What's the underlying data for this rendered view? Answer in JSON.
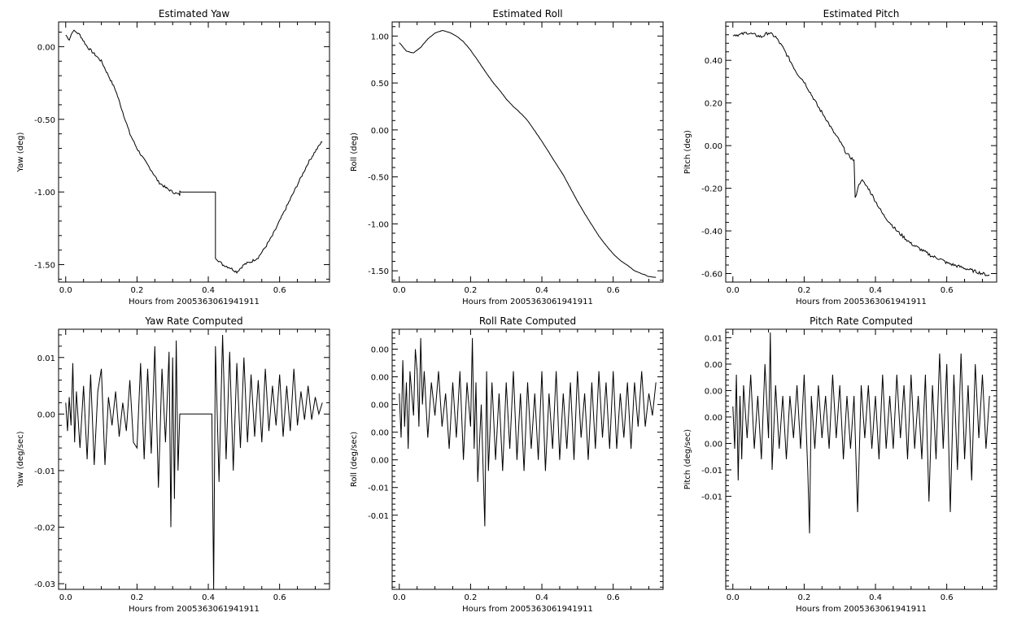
{
  "chart_data": [
    {
      "type": "line",
      "title": "Estimated Yaw",
      "xlabel": "Hours from 2005363061941911",
      "ylabel": "Yaw (deg)",
      "xlim": [
        -0.02,
        0.74
      ],
      "ylim": [
        -1.62,
        0.17
      ],
      "xticks": [
        0.0,
        0.2,
        0.4,
        0.6
      ],
      "xtick_labels": [
        "0.0",
        "0.2",
        "0.4",
        "0.6"
      ],
      "yticks": [
        0.0,
        -0.5,
        -1.0,
        -1.5
      ],
      "ytick_labels": [
        "0.00",
        "-0.50",
        "-1.00",
        "-1.50"
      ],
      "series": [
        {
          "noise": 0.018,
          "x": [
            0.0,
            0.01,
            0.02,
            0.03,
            0.04,
            0.06,
            0.08,
            0.1,
            0.12,
            0.14,
            0.16,
            0.18,
            0.2,
            0.22,
            0.24,
            0.26,
            0.28,
            0.3,
            0.32,
            0.32,
            0.42,
            0.42,
            0.44,
            0.46,
            0.48,
            0.5,
            0.52,
            0.54,
            0.56,
            0.58,
            0.6,
            0.62,
            0.64,
            0.66,
            0.68,
            0.7,
            0.72
          ],
          "y": [
            0.08,
            0.05,
            0.11,
            0.1,
            0.08,
            0.0,
            -0.05,
            -0.1,
            -0.2,
            -0.3,
            -0.45,
            -0.6,
            -0.7,
            -0.78,
            -0.85,
            -0.93,
            -0.97,
            -1.0,
            -1.02,
            -1.0,
            -1.0,
            -1.45,
            -1.5,
            -1.52,
            -1.55,
            -1.5,
            -1.48,
            -1.45,
            -1.38,
            -1.3,
            -1.2,
            -1.1,
            -1.0,
            -0.9,
            -0.8,
            -0.72,
            -0.65
          ]
        }
      ]
    },
    {
      "type": "line",
      "title": "Estimated Roll",
      "xlabel": "Hours from 2005363061941911",
      "ylabel": "Roll (deg)",
      "xlim": [
        -0.02,
        0.74
      ],
      "ylim": [
        -1.62,
        1.15
      ],
      "xticks": [
        0.0,
        0.2,
        0.4,
        0.6
      ],
      "xtick_labels": [
        "0.0",
        "0.2",
        "0.4",
        "0.6"
      ],
      "yticks": [
        1.0,
        0.5,
        0.0,
        -0.5,
        -1.0,
        -1.5
      ],
      "ytick_labels": [
        "1.00",
        "0.50",
        "0.00",
        "-0.50",
        "-1.00",
        "-1.50"
      ],
      "series": [
        {
          "noise": 0.004,
          "x": [
            0.0,
            0.02,
            0.04,
            0.06,
            0.08,
            0.1,
            0.12,
            0.14,
            0.16,
            0.18,
            0.2,
            0.22,
            0.24,
            0.26,
            0.28,
            0.3,
            0.32,
            0.34,
            0.36,
            0.38,
            0.4,
            0.42,
            0.44,
            0.46,
            0.48,
            0.5,
            0.52,
            0.54,
            0.56,
            0.58,
            0.6,
            0.62,
            0.64,
            0.66,
            0.68,
            0.7,
            0.72
          ],
          "y": [
            0.93,
            0.84,
            0.82,
            0.88,
            0.97,
            1.03,
            1.06,
            1.04,
            1.0,
            0.94,
            0.85,
            0.74,
            0.63,
            0.52,
            0.43,
            0.33,
            0.25,
            0.18,
            0.1,
            -0.01,
            -0.12,
            -0.24,
            -0.36,
            -0.48,
            -0.62,
            -0.76,
            -0.89,
            -1.01,
            -1.13,
            -1.23,
            -1.32,
            -1.39,
            -1.44,
            -1.5,
            -1.53,
            -1.56,
            -1.57
          ]
        }
      ]
    },
    {
      "type": "line",
      "title": "Estimated Pitch",
      "xlabel": "Hours from 2005363061941911",
      "ylabel": "Pitch (deg)",
      "xlim": [
        -0.02,
        0.74
      ],
      "ylim": [
        -0.64,
        0.58
      ],
      "xticks": [
        0.0,
        0.2,
        0.4,
        0.6
      ],
      "xtick_labels": [
        "0.0",
        "0.2",
        "0.4",
        "0.6"
      ],
      "yticks": [
        0.4,
        0.2,
        0.0,
        -0.2,
        -0.4,
        -0.6
      ],
      "ytick_labels": [
        "0.40",
        "0.20",
        "0.00",
        "-0.20",
        "-0.40",
        "-0.60"
      ],
      "series": [
        {
          "noise": 0.015,
          "x": [
            0.0,
            0.02,
            0.04,
            0.06,
            0.08,
            0.1,
            0.12,
            0.14,
            0.16,
            0.18,
            0.2,
            0.22,
            0.24,
            0.26,
            0.28,
            0.3,
            0.32,
            0.34,
            0.343,
            0.35,
            0.36,
            0.38,
            0.4,
            0.42,
            0.44,
            0.46,
            0.48,
            0.5,
            0.52,
            0.54,
            0.56,
            0.58,
            0.6,
            0.62,
            0.64,
            0.66,
            0.68,
            0.7,
            0.72
          ],
          "y": [
            0.52,
            0.52,
            0.53,
            0.52,
            0.51,
            0.53,
            0.51,
            0.46,
            0.4,
            0.34,
            0.3,
            0.24,
            0.18,
            0.13,
            0.07,
            0.02,
            -0.04,
            -0.07,
            -0.25,
            -0.2,
            -0.16,
            -0.2,
            -0.26,
            -0.32,
            -0.36,
            -0.4,
            -0.43,
            -0.46,
            -0.48,
            -0.5,
            -0.52,
            -0.53,
            -0.55,
            -0.56,
            -0.57,
            -0.58,
            -0.59,
            -0.6,
            -0.61
          ]
        }
      ]
    },
    {
      "type": "line",
      "title": "Yaw Rate Computed",
      "xlabel": "Hours from 2005363061941911",
      "ylabel": "Yaw (deg/sec)",
      "xlim": [
        -0.02,
        0.74
      ],
      "ylim": [
        -0.031,
        0.015
      ],
      "xticks": [
        0.0,
        0.2,
        0.4,
        0.6
      ],
      "xtick_labels": [
        "0.0",
        "0.2",
        "0.4",
        "0.6"
      ],
      "yticks": [
        0.01,
        0.0,
        -0.01,
        -0.02,
        -0.03
      ],
      "ytick_labels": [
        "0.01",
        "0.00",
        "-0.01",
        "-0.02",
        "-0.03"
      ],
      "series": [
        {
          "x": [
            0.0,
            0.005,
            0.01,
            0.015,
            0.02,
            0.025,
            0.03,
            0.04,
            0.05,
            0.06,
            0.07,
            0.08,
            0.09,
            0.1,
            0.11,
            0.12,
            0.13,
            0.14,
            0.15,
            0.16,
            0.17,
            0.18,
            0.19,
            0.2,
            0.21,
            0.22,
            0.23,
            0.24,
            0.25,
            0.26,
            0.27,
            0.28,
            0.29,
            0.295,
            0.3,
            0.305,
            0.31,
            0.315,
            0.32,
            0.41,
            0.415,
            0.42,
            0.43,
            0.44,
            0.45,
            0.46,
            0.47,
            0.48,
            0.49,
            0.5,
            0.51,
            0.52,
            0.53,
            0.54,
            0.55,
            0.56,
            0.57,
            0.58,
            0.59,
            0.6,
            0.61,
            0.62,
            0.63,
            0.64,
            0.65,
            0.66,
            0.67,
            0.68,
            0.69,
            0.7,
            0.71,
            0.72
          ],
          "y": [
            0.002,
            -0.003,
            0.003,
            -0.002,
            0.009,
            -0.005,
            0.004,
            -0.006,
            0.005,
            -0.008,
            0.007,
            -0.009,
            0.004,
            0.008,
            -0.009,
            0.003,
            -0.002,
            0.004,
            -0.004,
            0.002,
            -0.003,
            0.006,
            -0.005,
            -0.006,
            0.009,
            -0.008,
            0.008,
            -0.007,
            0.012,
            -0.013,
            0.008,
            -0.005,
            0.011,
            -0.02,
            0.01,
            -0.015,
            0.013,
            -0.01,
            0.0,
            0.0,
            -0.031,
            0.012,
            -0.012,
            0.014,
            -0.008,
            0.011,
            -0.01,
            0.009,
            -0.006,
            0.01,
            -0.005,
            0.007,
            -0.004,
            0.006,
            -0.005,
            0.008,
            -0.003,
            0.005,
            -0.002,
            0.007,
            -0.004,
            0.005,
            -0.003,
            0.008,
            -0.002,
            0.004,
            -0.001,
            0.005,
            -0.001,
            0.003,
            0.0,
            0.002
          ]
        }
      ]
    },
    {
      "type": "line",
      "title": "Roll Rate Computed",
      "xlabel": "Hours from 2005363061941911",
      "ylabel": "Roll (deg/sec)",
      "xlim": [
        -0.02,
        0.74
      ],
      "ylim": [
        -0.0167,
        0.0068
      ],
      "xticks": [
        0.0,
        0.2,
        0.4,
        0.6
      ],
      "xtick_labels": [
        "0.0",
        "0.2",
        "0.4",
        "0.6"
      ],
      "yticks": [
        0.005,
        0.0025,
        0.0,
        -0.0025,
        -0.005,
        -0.0075,
        -0.01
      ],
      "ytick_labels": [
        "0.00",
        "0.00",
        "0.00",
        "0.00",
        "0.00",
        "-0.01",
        "-0.01"
      ],
      "series": [
        {
          "x": [
            0.0,
            0.005,
            0.01,
            0.015,
            0.02,
            0.025,
            0.03,
            0.04,
            0.045,
            0.05,
            0.055,
            0.06,
            0.065,
            0.07,
            0.08,
            0.09,
            0.1,
            0.11,
            0.12,
            0.13,
            0.14,
            0.15,
            0.16,
            0.17,
            0.18,
            0.19,
            0.2,
            0.205,
            0.21,
            0.215,
            0.22,
            0.23,
            0.24,
            0.245,
            0.25,
            0.26,
            0.27,
            0.28,
            0.29,
            0.3,
            0.31,
            0.32,
            0.33,
            0.34,
            0.35,
            0.36,
            0.37,
            0.38,
            0.39,
            0.4,
            0.41,
            0.42,
            0.43,
            0.44,
            0.45,
            0.46,
            0.47,
            0.48,
            0.49,
            0.5,
            0.51,
            0.52,
            0.53,
            0.54,
            0.55,
            0.56,
            0.57,
            0.58,
            0.59,
            0.6,
            0.61,
            0.62,
            0.63,
            0.64,
            0.65,
            0.66,
            0.67,
            0.68,
            0.69,
            0.7,
            0.71,
            0.72
          ],
          "y": [
            0.001,
            -0.003,
            0.004,
            -0.002,
            0.002,
            -0.004,
            0.003,
            -0.001,
            0.005,
            0.003,
            -0.002,
            0.006,
            0.0,
            0.003,
            -0.003,
            0.002,
            -0.001,
            0.003,
            -0.002,
            0.001,
            -0.004,
            0.002,
            -0.003,
            0.003,
            -0.005,
            0.002,
            -0.002,
            0.006,
            -0.004,
            0.002,
            -0.007,
            0.0,
            -0.011,
            0.003,
            -0.006,
            0.002,
            -0.005,
            0.001,
            -0.006,
            0.002,
            -0.004,
            0.003,
            -0.005,
            0.001,
            -0.006,
            0.002,
            -0.004,
            0.001,
            -0.005,
            0.003,
            -0.006,
            0.001,
            -0.004,
            0.003,
            -0.005,
            0.001,
            -0.004,
            0.002,
            -0.005,
            0.003,
            -0.003,
            0.001,
            -0.005,
            0.002,
            -0.004,
            0.003,
            -0.003,
            0.002,
            -0.004,
            0.003,
            -0.004,
            0.001,
            -0.003,
            0.002,
            -0.004,
            0.002,
            -0.002,
            0.003,
            -0.002,
            0.001,
            -0.001,
            0.002
          ]
        }
      ]
    },
    {
      "type": "line",
      "title": "Pitch Rate Computed",
      "xlabel": "Hours from 2005363061941911",
      "ylabel": "Pitch (deg/sec)",
      "xlim": [
        -0.02,
        0.74
      ],
      "ylim": [
        -0.0163,
        0.0083
      ],
      "xticks": [
        0.0,
        0.2,
        0.4,
        0.6
      ],
      "xtick_labels": [
        "0.0",
        "0.2",
        "0.4",
        "0.6"
      ],
      "yticks": [
        0.0075,
        0.005,
        0.0025,
        0.0,
        -0.0025,
        -0.005,
        -0.0075
      ],
      "ytick_labels": [
        "0.01",
        "0.00",
        "0.00",
        "0.00",
        "0.00",
        "-0.01",
        "-0.01"
      ],
      "series": [
        {
          "x": [
            0.0,
            0.005,
            0.01,
            0.015,
            0.02,
            0.025,
            0.03,
            0.04,
            0.05,
            0.06,
            0.07,
            0.08,
            0.09,
            0.1,
            0.105,
            0.11,
            0.12,
            0.13,
            0.14,
            0.15,
            0.16,
            0.17,
            0.18,
            0.19,
            0.2,
            0.21,
            0.215,
            0.22,
            0.23,
            0.24,
            0.25,
            0.26,
            0.27,
            0.28,
            0.29,
            0.3,
            0.31,
            0.32,
            0.33,
            0.34,
            0.35,
            0.36,
            0.37,
            0.38,
            0.39,
            0.4,
            0.41,
            0.42,
            0.43,
            0.44,
            0.45,
            0.46,
            0.47,
            0.48,
            0.49,
            0.5,
            0.51,
            0.52,
            0.53,
            0.54,
            0.55,
            0.56,
            0.57,
            0.58,
            0.59,
            0.6,
            0.61,
            0.62,
            0.63,
            0.64,
            0.65,
            0.66,
            0.67,
            0.68,
            0.69,
            0.7,
            0.71,
            0.72
          ],
          "y": [
            0.001,
            -0.003,
            0.004,
            -0.006,
            0.002,
            -0.004,
            0.003,
            -0.002,
            0.004,
            -0.003,
            0.002,
            -0.004,
            0.005,
            -0.002,
            0.008,
            -0.005,
            0.003,
            -0.003,
            0.002,
            -0.004,
            0.002,
            -0.002,
            0.003,
            -0.003,
            0.004,
            -0.005,
            -0.011,
            0.002,
            -0.003,
            0.003,
            -0.002,
            0.002,
            -0.003,
            0.004,
            -0.002,
            0.003,
            -0.004,
            0.002,
            -0.003,
            0.002,
            -0.009,
            0.003,
            -0.002,
            0.003,
            -0.003,
            0.002,
            -0.004,
            0.004,
            -0.003,
            0.002,
            -0.003,
            0.004,
            -0.002,
            0.003,
            -0.004,
            0.004,
            -0.003,
            0.002,
            -0.004,
            0.004,
            -0.008,
            0.003,
            -0.004,
            0.006,
            -0.003,
            0.005,
            -0.009,
            0.004,
            -0.005,
            0.006,
            -0.004,
            0.003,
            -0.006,
            0.005,
            -0.002,
            0.004,
            -0.003,
            0.002
          ]
        }
      ]
    }
  ]
}
